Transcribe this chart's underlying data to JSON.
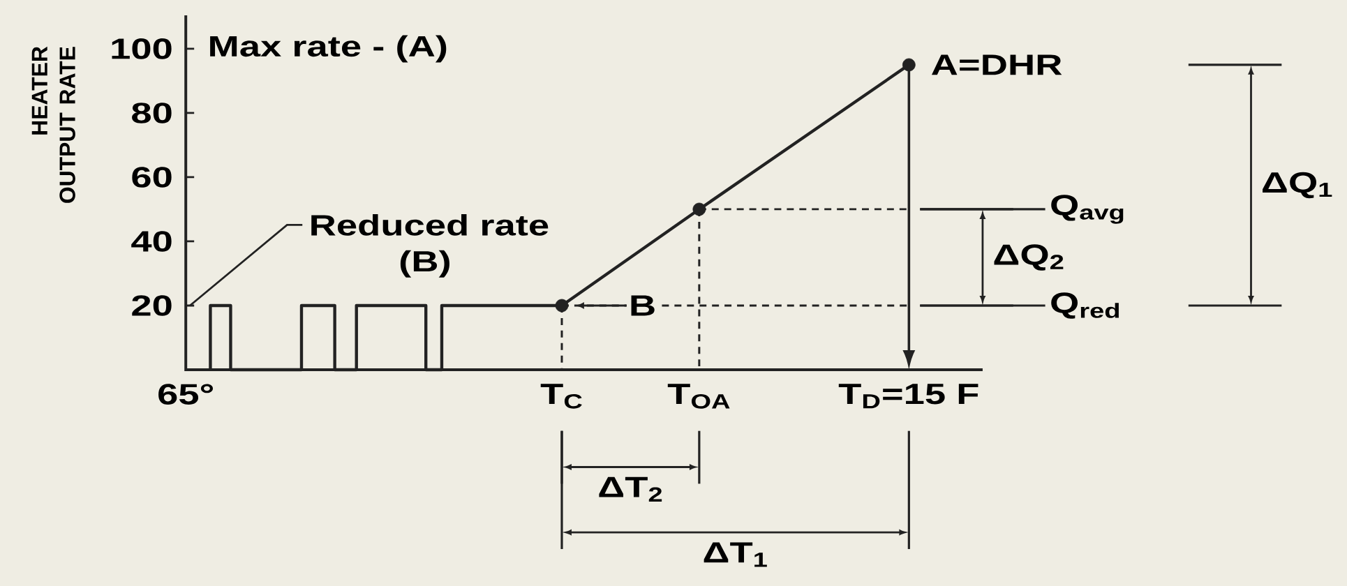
{
  "chart_data": {
    "type": "line",
    "ylabel": "HEATER OUTPUT RATE",
    "xlim": [
      65,
      10
    ],
    "ylim": [
      0,
      110
    ],
    "xticks": [
      {
        "value": 65,
        "label": "65°"
      },
      {
        "value": 39,
        "label": "T$_{C}$"
      },
      {
        "value": 29.5,
        "label": "T$_{OA}$"
      },
      {
        "value": 15,
        "label": "T$_{D}$=15 F"
      }
    ],
    "yticks": [
      20,
      40,
      60,
      80,
      100
    ],
    "series": [
      {
        "color": "#222222",
        "x": [
          63.3,
          63.3,
          61.9,
          61.9,
          57.0,
          57.0,
          54.7,
          54.7,
          53.2,
          53.2,
          48.4,
          48.4,
          47.3,
          47.3,
          39,
          29.5,
          15
        ],
        "values": [
          0,
          20,
          20,
          0,
          0,
          20,
          20,
          0,
          0,
          20,
          20,
          0,
          0,
          20,
          20,
          50,
          95
        ]
      },
      {
        "type": "scatter",
        "marker": "circle",
        "color": "#222222",
        "x": [
          39,
          29.5,
          15
        ],
        "values": [
          20,
          50,
          95
        ]
      }
    ],
    "ref_lines": [
      {
        "axis": "x",
        "value": 39,
        "line_style": "dashed"
      },
      {
        "axis": "x",
        "value": 29.5,
        "line_style": "dashed"
      },
      {
        "axis": "y",
        "value": 50,
        "label": "Q$_{avg}$",
        "line_style": "dashed"
      },
      {
        "axis": "y",
        "value": 20,
        "label": "Q$_{red}$",
        "line_style": "dashed"
      }
    ],
    "annotations": [
      "Max rate - (A)",
      "Reduced rate",
      "(B)",
      {
        "text": "B",
        "x": 39,
        "y": 20
      },
      {
        "text": "A=DHR",
        "x": 15,
        "y": 95
      },
      "ΔQ$_{1}$",
      "ΔQ$_{2}$",
      "ΔT$_{1}$",
      "ΔT$_{2}$"
    ]
  }
}
